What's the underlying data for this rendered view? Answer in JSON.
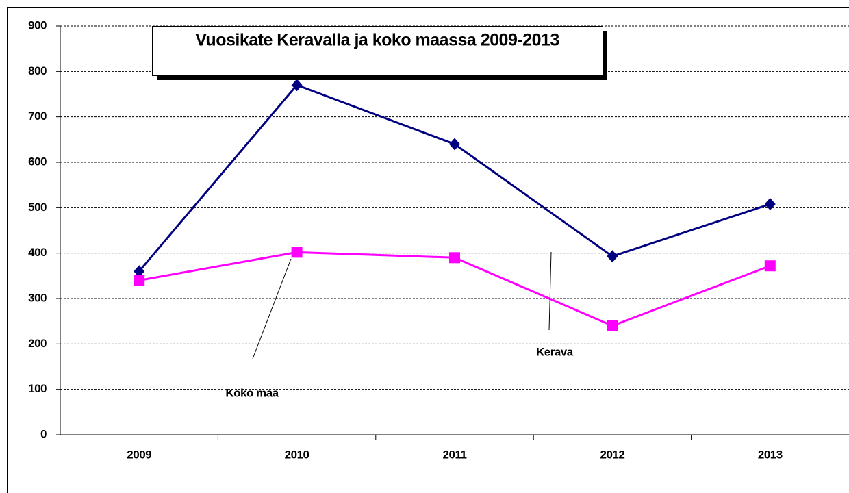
{
  "chart_data": {
    "type": "line",
    "title": "Vuosikate Keravalla ja koko maassa 2009-2013",
    "categories": [
      "2009",
      "2010",
      "2011",
      "2012",
      "2013"
    ],
    "series": [
      {
        "name": "Kerava",
        "color": "#000080",
        "marker": "diamond",
        "values": [
          360,
          770,
          640,
          393,
          508
        ]
      },
      {
        "name": "Koko maa",
        "color": "#ff00ff",
        "marker": "square",
        "values": [
          340,
          402,
          390,
          240,
          372
        ]
      }
    ],
    "ylim": [
      0,
      900
    ],
    "yticks": [
      0,
      100,
      200,
      300,
      400,
      500,
      600,
      700,
      800,
      900
    ],
    "grid": true
  }
}
